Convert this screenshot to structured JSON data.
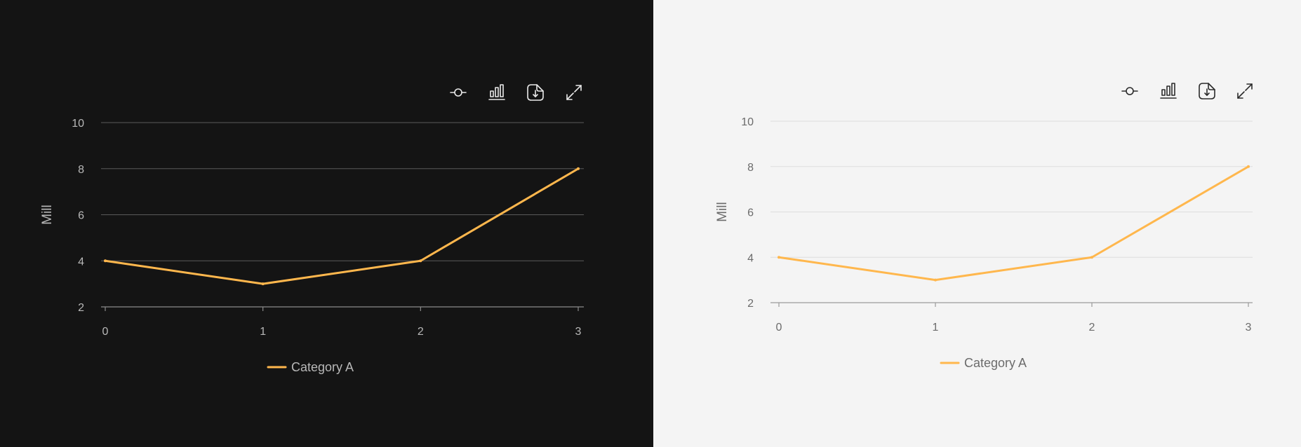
{
  "panels": [
    {
      "theme": "dark",
      "colors": {
        "background": "#141414",
        "grid": "#5a5a5a",
        "axis": "#8a8a8a",
        "text": "#b8b8b8",
        "icon": "#eaeaea",
        "series": "#ffb74d"
      },
      "toolbar": {
        "icons": [
          "line-mode-icon",
          "bar-mode-icon",
          "download-icon",
          "fullscreen-icon"
        ]
      },
      "chart_data": {
        "type": "line",
        "x": [
          0,
          1,
          2,
          3
        ],
        "series": [
          {
            "name": "Category A",
            "values": [
              4,
              3,
              4,
              8
            ]
          }
        ],
        "ylabel": "Mill",
        "xlabel": "",
        "ylim": [
          2,
          10
        ],
        "yticks": [
          2,
          4,
          6,
          8,
          10
        ],
        "xticks": [
          0,
          1,
          2,
          3
        ],
        "grid": true,
        "legend": "bottom-center"
      }
    },
    {
      "theme": "light",
      "colors": {
        "background": "#f4f4f4",
        "grid": "#dddddd",
        "axis": "#9a9a9a",
        "text": "#6b6b6b",
        "icon": "#2b2b2b",
        "series": "#ffb74d"
      },
      "toolbar": {
        "icons": [
          "line-mode-icon",
          "bar-mode-icon",
          "download-icon",
          "fullscreen-icon"
        ]
      },
      "chart_data": {
        "type": "line",
        "x": [
          0,
          1,
          2,
          3
        ],
        "series": [
          {
            "name": "Category A",
            "values": [
              4,
              3,
              4,
              8
            ]
          }
        ],
        "ylabel": "Mill",
        "xlabel": "",
        "ylim": [
          2,
          10
        ],
        "yticks": [
          2,
          4,
          6,
          8,
          10
        ],
        "xticks": [
          0,
          1,
          2,
          3
        ],
        "grid": true,
        "legend": "bottom-center"
      }
    }
  ]
}
